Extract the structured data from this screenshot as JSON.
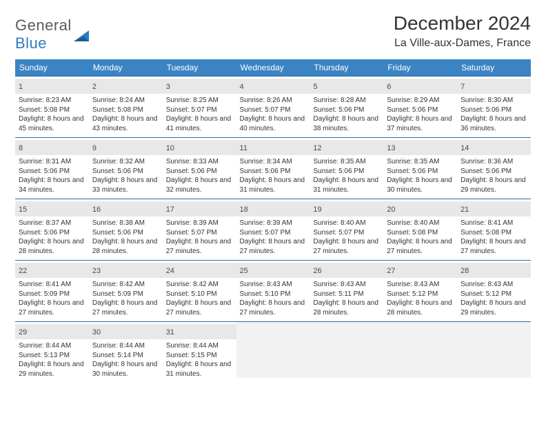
{
  "brand": {
    "part1": "General",
    "part2": "Blue"
  },
  "title": "December 2024",
  "location": "La Ville-aux-Dames, France",
  "colors": {
    "header_bg": "#3b84c4",
    "header_text": "#ffffff",
    "cell_border": "#2e6da4",
    "daynum_bg": "#e8e8e8",
    "empty_bg": "#f2f2f2",
    "brand_gray": "#5a5a5a",
    "brand_blue": "#2f7bbf"
  },
  "weekdays": [
    "Sunday",
    "Monday",
    "Tuesday",
    "Wednesday",
    "Thursday",
    "Friday",
    "Saturday"
  ],
  "days": [
    {
      "n": 1,
      "sr": "8:23 AM",
      "ss": "5:08 PM",
      "dl": "8 hours and 45 minutes."
    },
    {
      "n": 2,
      "sr": "8:24 AM",
      "ss": "5:08 PM",
      "dl": "8 hours and 43 minutes."
    },
    {
      "n": 3,
      "sr": "8:25 AM",
      "ss": "5:07 PM",
      "dl": "8 hours and 41 minutes."
    },
    {
      "n": 4,
      "sr": "8:26 AM",
      "ss": "5:07 PM",
      "dl": "8 hours and 40 minutes."
    },
    {
      "n": 5,
      "sr": "8:28 AM",
      "ss": "5:06 PM",
      "dl": "8 hours and 38 minutes."
    },
    {
      "n": 6,
      "sr": "8:29 AM",
      "ss": "5:06 PM",
      "dl": "8 hours and 37 minutes."
    },
    {
      "n": 7,
      "sr": "8:30 AM",
      "ss": "5:06 PM",
      "dl": "8 hours and 36 minutes."
    },
    {
      "n": 8,
      "sr": "8:31 AM",
      "ss": "5:06 PM",
      "dl": "8 hours and 34 minutes."
    },
    {
      "n": 9,
      "sr": "8:32 AM",
      "ss": "5:06 PM",
      "dl": "8 hours and 33 minutes."
    },
    {
      "n": 10,
      "sr": "8:33 AM",
      "ss": "5:06 PM",
      "dl": "8 hours and 32 minutes."
    },
    {
      "n": 11,
      "sr": "8:34 AM",
      "ss": "5:06 PM",
      "dl": "8 hours and 31 minutes."
    },
    {
      "n": 12,
      "sr": "8:35 AM",
      "ss": "5:06 PM",
      "dl": "8 hours and 31 minutes."
    },
    {
      "n": 13,
      "sr": "8:35 AM",
      "ss": "5:06 PM",
      "dl": "8 hours and 30 minutes."
    },
    {
      "n": 14,
      "sr": "8:36 AM",
      "ss": "5:06 PM",
      "dl": "8 hours and 29 minutes."
    },
    {
      "n": 15,
      "sr": "8:37 AM",
      "ss": "5:06 PM",
      "dl": "8 hours and 28 minutes."
    },
    {
      "n": 16,
      "sr": "8:38 AM",
      "ss": "5:06 PM",
      "dl": "8 hours and 28 minutes."
    },
    {
      "n": 17,
      "sr": "8:39 AM",
      "ss": "5:07 PM",
      "dl": "8 hours and 27 minutes."
    },
    {
      "n": 18,
      "sr": "8:39 AM",
      "ss": "5:07 PM",
      "dl": "8 hours and 27 minutes."
    },
    {
      "n": 19,
      "sr": "8:40 AM",
      "ss": "5:07 PM",
      "dl": "8 hours and 27 minutes."
    },
    {
      "n": 20,
      "sr": "8:40 AM",
      "ss": "5:08 PM",
      "dl": "8 hours and 27 minutes."
    },
    {
      "n": 21,
      "sr": "8:41 AM",
      "ss": "5:08 PM",
      "dl": "8 hours and 27 minutes."
    },
    {
      "n": 22,
      "sr": "8:41 AM",
      "ss": "5:09 PM",
      "dl": "8 hours and 27 minutes."
    },
    {
      "n": 23,
      "sr": "8:42 AM",
      "ss": "5:09 PM",
      "dl": "8 hours and 27 minutes."
    },
    {
      "n": 24,
      "sr": "8:42 AM",
      "ss": "5:10 PM",
      "dl": "8 hours and 27 minutes."
    },
    {
      "n": 25,
      "sr": "8:43 AM",
      "ss": "5:10 PM",
      "dl": "8 hours and 27 minutes."
    },
    {
      "n": 26,
      "sr": "8:43 AM",
      "ss": "5:11 PM",
      "dl": "8 hours and 28 minutes."
    },
    {
      "n": 27,
      "sr": "8:43 AM",
      "ss": "5:12 PM",
      "dl": "8 hours and 28 minutes."
    },
    {
      "n": 28,
      "sr": "8:43 AM",
      "ss": "5:12 PM",
      "dl": "8 hours and 29 minutes."
    },
    {
      "n": 29,
      "sr": "8:44 AM",
      "ss": "5:13 PM",
      "dl": "8 hours and 29 minutes."
    },
    {
      "n": 30,
      "sr": "8:44 AM",
      "ss": "5:14 PM",
      "dl": "8 hours and 30 minutes."
    },
    {
      "n": 31,
      "sr": "8:44 AM",
      "ss": "5:15 PM",
      "dl": "8 hours and 31 minutes."
    }
  ],
  "labels": {
    "sunrise": "Sunrise:",
    "sunset": "Sunset:",
    "daylight": "Daylight:"
  },
  "layout": {
    "start_weekday": 0,
    "total_cells": 35
  }
}
